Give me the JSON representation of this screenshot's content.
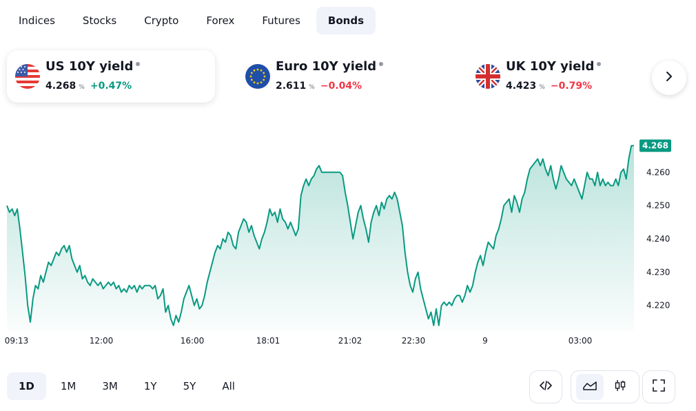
{
  "tabs": [
    {
      "label": "Indices",
      "active": false
    },
    {
      "label": "Stocks",
      "active": false
    },
    {
      "label": "Crypto",
      "active": false
    },
    {
      "label": "Forex",
      "active": false
    },
    {
      "label": "Futures",
      "active": false
    },
    {
      "label": "Bonds",
      "active": true
    }
  ],
  "cards": [
    {
      "title": "US 10Y yield",
      "value": "4.268",
      "unit": "%",
      "change": "+0.47%",
      "direction": "up",
      "flag": "us-flag-icon",
      "active": true
    },
    {
      "title": "Euro 10Y yield",
      "value": "2.611",
      "unit": "%",
      "change": "−0.04%",
      "direction": "down",
      "flag": "eu-flag-icon",
      "active": false
    },
    {
      "title": "UK 10Y yield",
      "value": "4.423",
      "unit": "%",
      "change": "−0.79%",
      "direction": "down",
      "flag": "uk-flag-icon",
      "active": false
    }
  ],
  "colors": {
    "line": "#089981",
    "positive": "#089981",
    "negative": "#f23645",
    "accent_bg": "#f0f3fa"
  },
  "chart_data": {
    "type": "area",
    "title": "",
    "xlabel": "",
    "ylabel": "",
    "ylim": [
      4.2125,
      4.2735
    ],
    "y_ticks": [
      "4.220",
      "4.230",
      "4.240",
      "4.250",
      "4.260"
    ],
    "x_ticks": [
      "09:13",
      "12:00",
      "16:00",
      "18:01",
      "21:02",
      "22:30",
      "9",
      "03:00"
    ],
    "last_value_label": "4.268",
    "grid": false,
    "series": [
      {
        "values": [
          4.25,
          4.248,
          4.249,
          4.247,
          4.249,
          4.243,
          4.236,
          4.229,
          4.22,
          4.215,
          4.222,
          4.226,
          4.225,
          4.229,
          4.227,
          4.23,
          4.233,
          4.232,
          4.234,
          4.236,
          4.235,
          4.237,
          4.238,
          4.236,
          4.238,
          4.234,
          4.232,
          4.23,
          4.232,
          4.228,
          4.229,
          4.227,
          4.226,
          4.228,
          4.227,
          4.226,
          4.227,
          4.225,
          4.226,
          4.227,
          4.226,
          4.227,
          4.225,
          4.226,
          4.224,
          4.225,
          4.224,
          4.226,
          4.225,
          4.226,
          4.224,
          4.226,
          4.225,
          4.226,
          4.226,
          4.226,
          4.225,
          4.226,
          4.222,
          4.223,
          4.225,
          4.218,
          4.22,
          4.216,
          4.214,
          4.217,
          4.215,
          4.218,
          4.222,
          4.224,
          4.226,
          4.223,
          4.22,
          4.222,
          4.219,
          4.22,
          4.223,
          4.227,
          4.23,
          4.233,
          4.236,
          4.238,
          4.237,
          4.24,
          4.239,
          4.242,
          4.241,
          4.238,
          4.237,
          4.242,
          4.244,
          4.246,
          4.245,
          4.242,
          4.244,
          4.241,
          4.239,
          4.237,
          4.24,
          4.242,
          4.245,
          4.249,
          4.247,
          4.248,
          4.245,
          4.249,
          4.246,
          4.245,
          4.243,
          4.245,
          4.243,
          4.241,
          4.243,
          4.253,
          4.256,
          4.258,
          4.256,
          4.258,
          4.259,
          4.261,
          4.262,
          4.26,
          4.26,
          4.26,
          4.26,
          4.26,
          4.26,
          4.26,
          4.26,
          4.259,
          4.254,
          4.25,
          4.245,
          4.24,
          4.244,
          4.248,
          4.25,
          4.246,
          4.243,
          4.239,
          4.245,
          4.248,
          4.25,
          4.247,
          4.251,
          4.249,
          4.252,
          4.253,
          4.252,
          4.254,
          4.252,
          4.248,
          4.244,
          4.236,
          4.23,
          4.226,
          4.224,
          4.228,
          4.23,
          4.225,
          4.222,
          4.219,
          4.216,
          4.218,
          4.214,
          4.219,
          4.214,
          4.22,
          4.221,
          4.22,
          4.221,
          4.22,
          4.222,
          4.223,
          4.223,
          4.221,
          4.223,
          4.226,
          4.224,
          4.226,
          4.23,
          4.233,
          4.235,
          4.232,
          4.236,
          4.239,
          4.238,
          4.237,
          4.241,
          4.243,
          4.246,
          4.25,
          4.251,
          4.252,
          4.248,
          4.253,
          4.251,
          4.248,
          4.252,
          4.254,
          4.258,
          4.261,
          4.262,
          4.263,
          4.264,
          4.262,
          4.264,
          4.261,
          4.259,
          4.262,
          4.258,
          4.255,
          4.258,
          4.262,
          4.26,
          4.258,
          4.257,
          4.256,
          4.258,
          4.256,
          4.254,
          4.252,
          4.256,
          4.26,
          4.258,
          4.258,
          4.256,
          4.26,
          4.256,
          4.258,
          4.256,
          4.257,
          4.256,
          4.256,
          4.258,
          4.256,
          4.26,
          4.261,
          4.258,
          4.264,
          4.268,
          4.268
        ]
      }
    ]
  },
  "ranges": [
    {
      "label": "1D",
      "active": true
    },
    {
      "label": "1M",
      "active": false
    },
    {
      "label": "3M",
      "active": false
    },
    {
      "label": "1Y",
      "active": false
    },
    {
      "label": "5Y",
      "active": false
    },
    {
      "label": "All",
      "active": false
    }
  ],
  "controls": {
    "embed_icon": "code-icon",
    "area_icon": "area-chart-icon",
    "candles_icon": "candlestick-icon",
    "fullscreen_icon": "fullscreen-icon",
    "next_icon": "chevron-right-icon"
  }
}
